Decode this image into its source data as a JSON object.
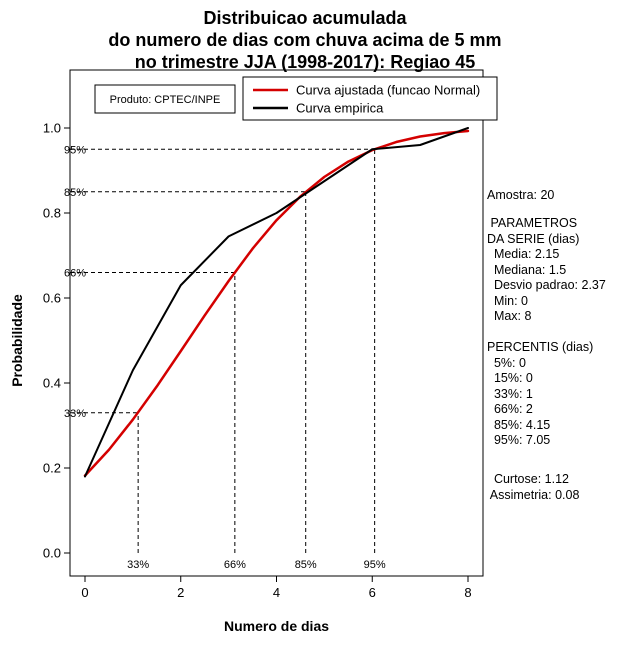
{
  "product_box": "Produto: CPTEC/INPE",
  "chart_data": {
    "type": "line",
    "title": [
      "Distribuicao acumulada",
      "do numero de dias com chuva acima de 5 mm",
      "no trimestre JJA (1998-2017): Regiao 45"
    ],
    "xlabel": "Numero de dias",
    "ylabel": "Probabilidade",
    "xlim": [
      0,
      8
    ],
    "ylim": [
      0,
      1
    ],
    "xticks": [
      0,
      2,
      4,
      6,
      8
    ],
    "yticks": [
      "0.0",
      "0.2",
      "0.4",
      "0.6",
      "0.8",
      "1.0"
    ],
    "grid": false,
    "legend_position": "top",
    "series": [
      {
        "name": "Curva ajustada (funcao Normal)",
        "color": "#d40000",
        "width": 2.5,
        "x": [
          0,
          0.5,
          1,
          1.5,
          2,
          2.5,
          3,
          3.5,
          4,
          4.5,
          5,
          5.5,
          6,
          6.5,
          7,
          7.5,
          8
        ],
        "y": [
          0.182,
          0.243,
          0.314,
          0.392,
          0.475,
          0.559,
          0.64,
          0.716,
          0.783,
          0.839,
          0.885,
          0.921,
          0.948,
          0.967,
          0.98,
          0.988,
          0.993
        ]
      },
      {
        "name": "Curva empirica",
        "color": "#000000",
        "width": 2,
        "x": [
          0,
          1,
          2,
          3,
          4,
          5,
          6,
          7,
          8
        ],
        "y": [
          0.18,
          0.43,
          0.63,
          0.745,
          0.8,
          0.875,
          0.95,
          0.96,
          1.0
        ]
      }
    ],
    "guides": [
      {
        "label": "33%",
        "p": 0.33,
        "x": 1.11
      },
      {
        "label": "66%",
        "p": 0.66,
        "x": 3.13
      },
      {
        "label": "85%",
        "p": 0.85,
        "x": 4.61
      },
      {
        "label": "95%",
        "p": 0.95,
        "x": 6.05
      }
    ]
  },
  "stats": {
    "amostra": "Amostra: 20",
    "parametros": [
      " PARAMETROS",
      "DA SERIE (dias)",
      "  Media: 2.15",
      "  Mediana: 1.5",
      "  Desvio padrao: 2.37",
      "  Min: 0",
      "  Max: 8"
    ],
    "percentis": [
      "PERCENTIS (dias)",
      "  5%: 0",
      "  15%: 0",
      "  33%: 1",
      "  66%: 2",
      "  85%: 4.15",
      "  95%: 7.05"
    ],
    "momentos": [
      "  Curtose: 1.12",
      " Assimetria: 0.08"
    ]
  }
}
